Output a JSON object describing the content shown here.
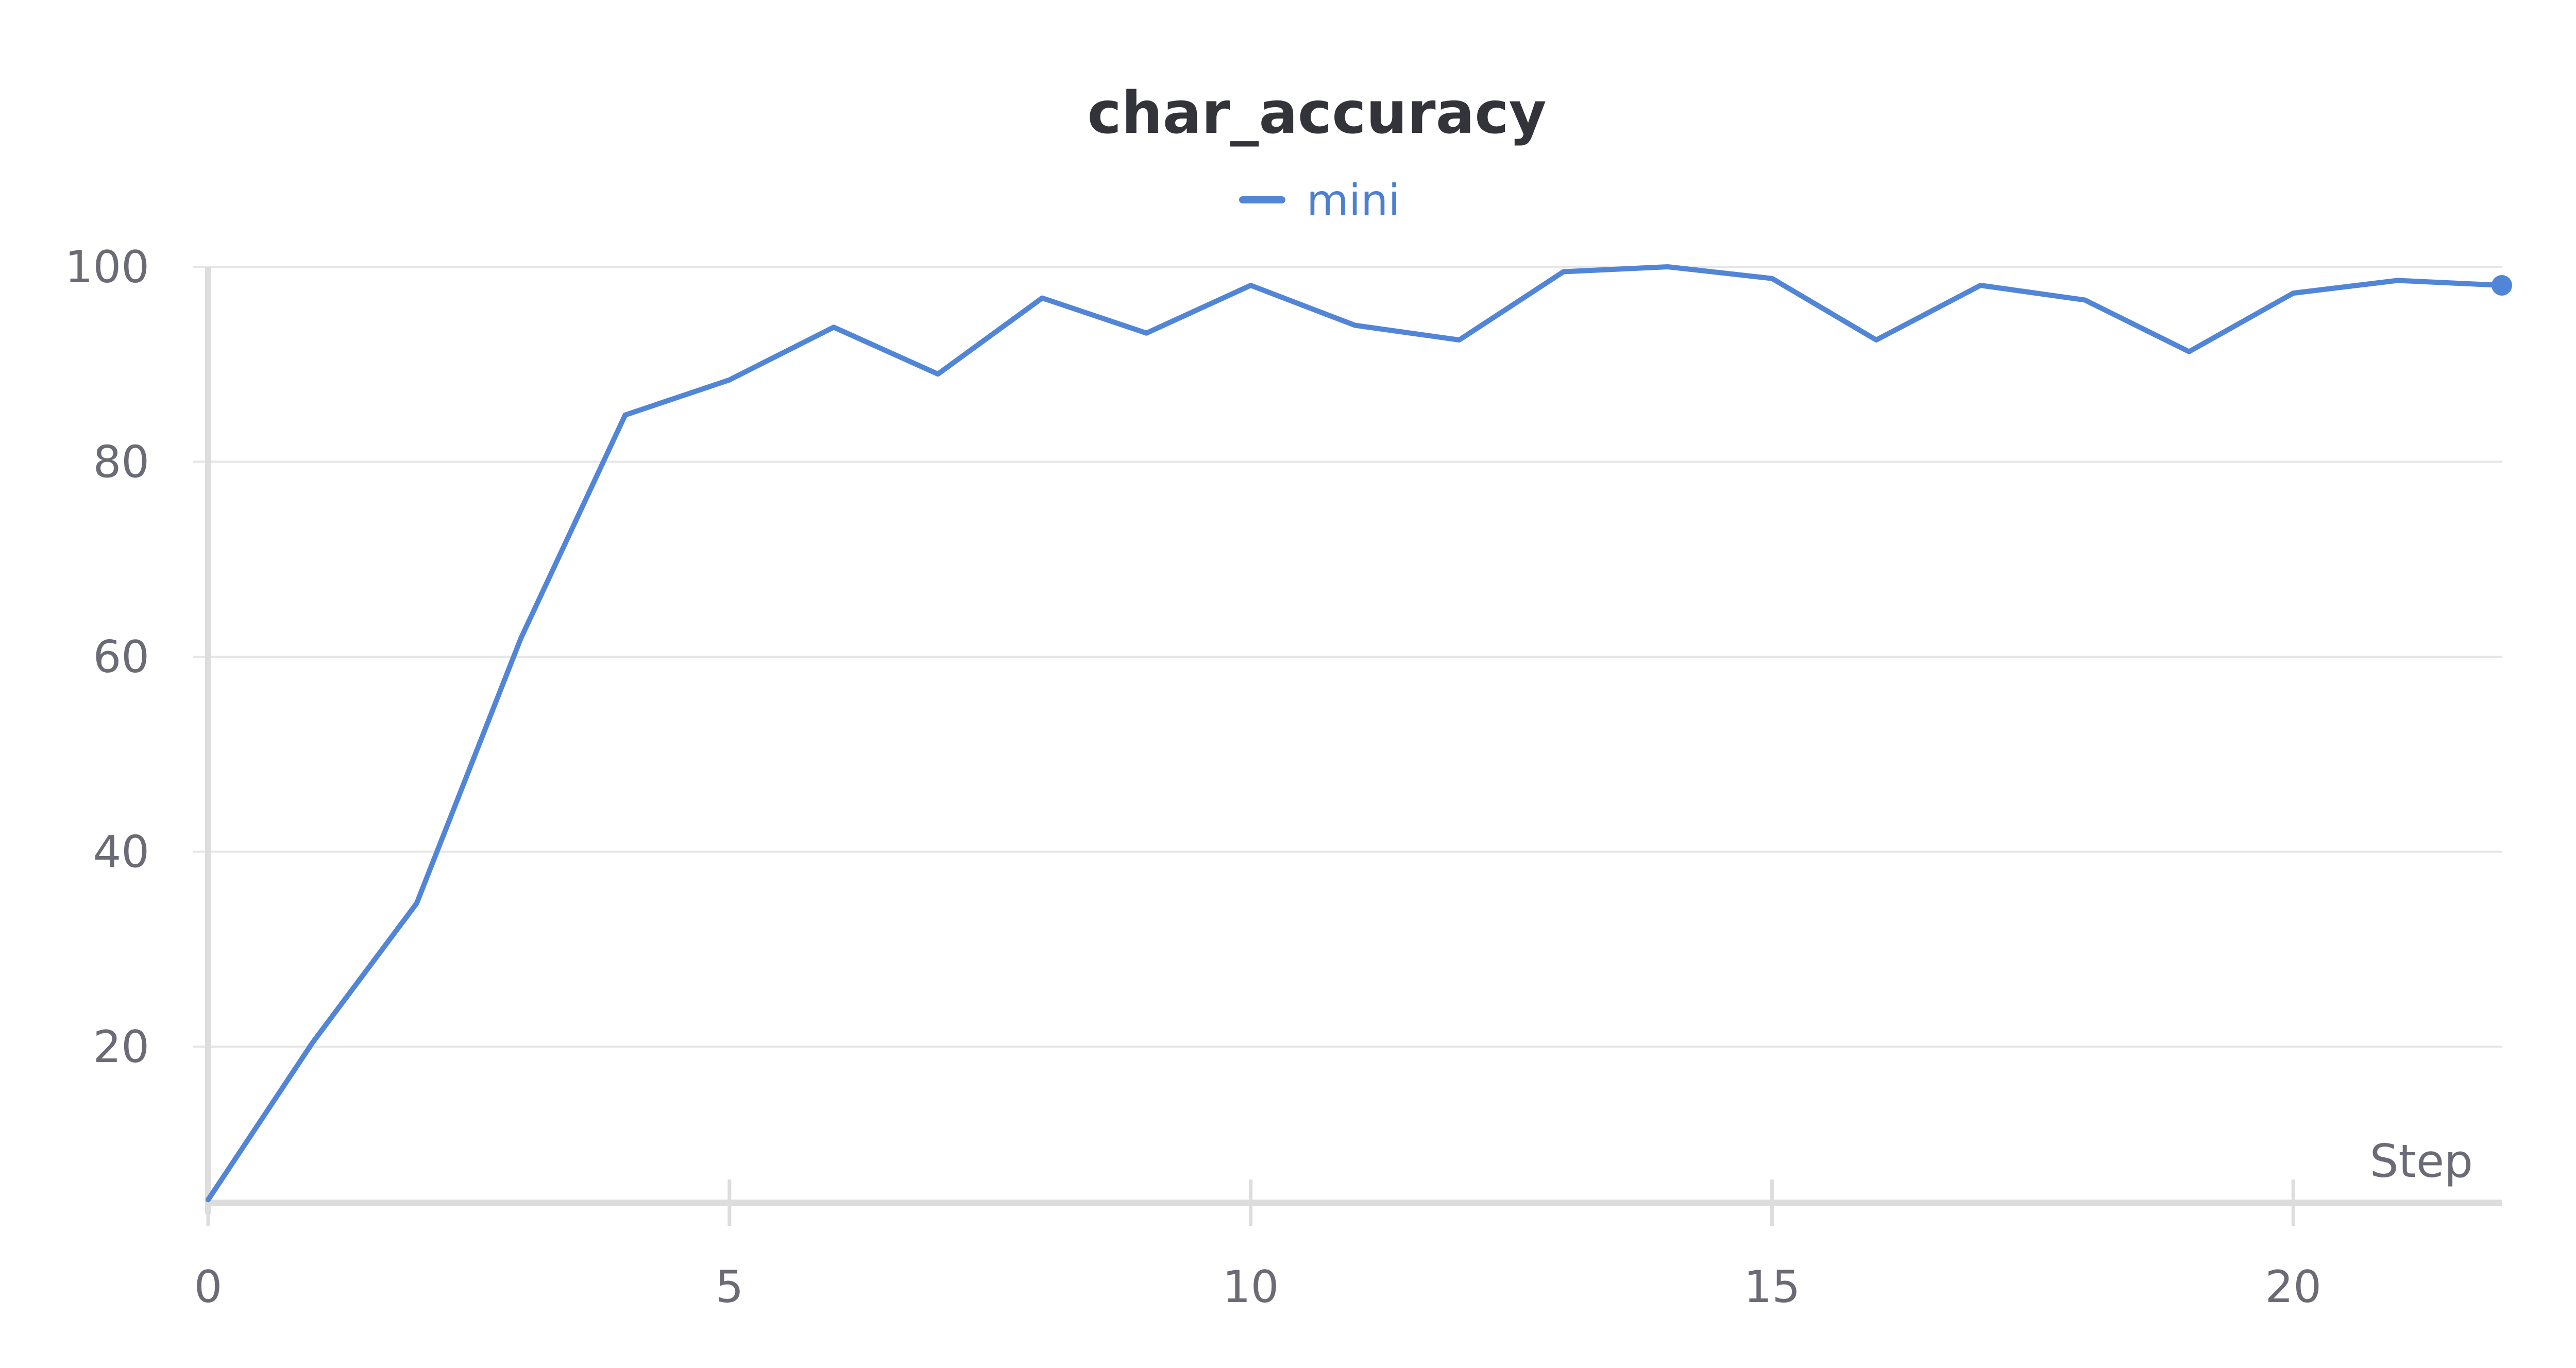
{
  "chart_data": {
    "type": "line",
    "title": "char_accuracy",
    "xlabel": "Step",
    "ylabel": "",
    "x": [
      0,
      1,
      2,
      3,
      4,
      5,
      6,
      7,
      8,
      9,
      10,
      11,
      12,
      13,
      14,
      15,
      16,
      17,
      18,
      19,
      20,
      21,
      22
    ],
    "series": [
      {
        "name": "mini",
        "color": "#5185d8",
        "values": [
          4.3,
          20.4,
          34.7,
          61.9,
          84.8,
          88.4,
          93.8,
          89.0,
          96.8,
          93.2,
          98.1,
          94.0,
          92.5,
          99.5,
          100.0,
          98.8,
          92.5,
          98.1,
          96.6,
          91.3,
          97.3,
          98.6,
          98.1
        ]
      }
    ],
    "xlim": [
      0,
      22
    ],
    "ylim": [
      4,
      100
    ],
    "x_ticks": [
      0,
      5,
      10,
      15,
      20
    ],
    "y_ticks": [
      20,
      40,
      60,
      80,
      100
    ],
    "grid": true,
    "legend_position": "top-center"
  }
}
